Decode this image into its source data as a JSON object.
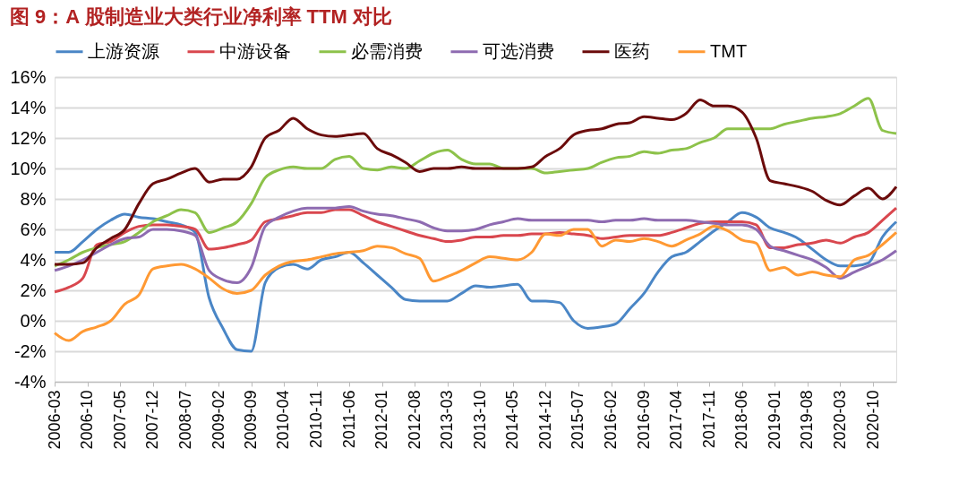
{
  "chart_data": {
    "type": "line",
    "title": "图 9：A 股制造业大类行业净利率 TTM 对比",
    "x": [
      "2006-03",
      "2006-06",
      "2006-09",
      "2006-12",
      "2007-03",
      "2007-06",
      "2007-09",
      "2007-12",
      "2008-03",
      "2008-06",
      "2008-09",
      "2008-12",
      "2009-03",
      "2009-06",
      "2009-09",
      "2009-12",
      "2010-03",
      "2010-06",
      "2010-09",
      "2010-12",
      "2011-03",
      "2011-06",
      "2011-09",
      "2011-12",
      "2012-03",
      "2012-06",
      "2012-09",
      "2012-12",
      "2013-03",
      "2013-06",
      "2013-09",
      "2013-12",
      "2014-03",
      "2014-06",
      "2014-09",
      "2014-12",
      "2015-03",
      "2015-06",
      "2015-09",
      "2015-12",
      "2016-03",
      "2016-06",
      "2016-09",
      "2016-12",
      "2017-03",
      "2017-06",
      "2017-09",
      "2017-12",
      "2018-03",
      "2018-06",
      "2018-09",
      "2018-12",
      "2019-03",
      "2019-06",
      "2019-09",
      "2019-12",
      "2020-03",
      "2020-06",
      "2020-09",
      "2020-12",
      "2021-03"
    ],
    "series": [
      {
        "name": "上游资源",
        "color": "#4a86c6",
        "values": [
          4.5,
          4.5,
          5.2,
          6.0,
          6.6,
          7.0,
          6.8,
          6.7,
          6.5,
          6.3,
          5.8,
          1.5,
          -0.5,
          -1.9,
          -2.0,
          2.5,
          3.5,
          3.7,
          3.4,
          4.0,
          4.2,
          4.5,
          3.8,
          3.0,
          2.2,
          1.4,
          1.3,
          1.3,
          1.3,
          1.8,
          2.3,
          2.2,
          2.3,
          2.4,
          1.3,
          1.3,
          1.2,
          0.0,
          -0.5,
          -0.4,
          -0.2,
          0.8,
          1.8,
          3.2,
          4.2,
          4.5,
          5.2,
          5.9,
          6.5,
          7.1,
          6.8,
          6.1,
          5.8,
          5.4,
          4.7,
          4.0,
          3.6,
          3.6,
          3.8,
          5.5,
          6.5
        ]
      },
      {
        "name": "中游设备",
        "color": "#d9474e",
        "values": [
          1.9,
          2.2,
          2.8,
          5.0,
          5.2,
          5.8,
          6.2,
          6.3,
          6.3,
          6.2,
          6.0,
          4.7,
          4.8,
          5.0,
          5.3,
          6.5,
          6.7,
          6.9,
          7.1,
          7.1,
          7.3,
          7.3,
          6.9,
          6.5,
          6.2,
          5.9,
          5.6,
          5.4,
          5.2,
          5.3,
          5.5,
          5.5,
          5.6,
          5.6,
          5.7,
          5.7,
          5.8,
          5.7,
          5.6,
          5.4,
          5.5,
          5.6,
          5.6,
          5.6,
          5.8,
          6.1,
          6.4,
          6.5,
          6.5,
          6.5,
          6.3,
          4.8,
          4.8,
          5.0,
          5.1,
          5.3,
          5.1,
          5.5,
          5.8,
          6.6,
          7.4
        ]
      },
      {
        "name": "必需消费",
        "color": "#8dc24a",
        "values": [
          3.6,
          4.0,
          4.5,
          4.8,
          5.0,
          5.2,
          5.8,
          6.5,
          6.9,
          7.3,
          7.1,
          5.8,
          6.1,
          6.5,
          7.7,
          9.4,
          9.9,
          10.1,
          10.0,
          10.0,
          10.6,
          10.8,
          10.0,
          9.9,
          10.1,
          10.0,
          10.5,
          11.0,
          11.2,
          10.6,
          10.3,
          10.3,
          10.0,
          10.0,
          10.0,
          9.7,
          9.8,
          9.9,
          10.0,
          10.4,
          10.7,
          10.8,
          11.1,
          11.0,
          11.2,
          11.3,
          11.7,
          12.0,
          12.6,
          12.6,
          12.6,
          12.6,
          12.9,
          13.1,
          13.3,
          13.4,
          13.6,
          14.1,
          14.6,
          12.5,
          12.3
        ]
      },
      {
        "name": "可选消费",
        "color": "#8e6bb1",
        "values": [
          3.3,
          3.6,
          4.0,
          4.5,
          5.0,
          5.4,
          5.5,
          6.0,
          6.0,
          5.9,
          5.6,
          3.3,
          2.7,
          2.5,
          3.5,
          6.2,
          6.8,
          7.2,
          7.4,
          7.4,
          7.4,
          7.5,
          7.2,
          7.0,
          6.9,
          6.7,
          6.5,
          6.1,
          5.9,
          5.9,
          6.0,
          6.3,
          6.5,
          6.7,
          6.6,
          6.6,
          6.6,
          6.6,
          6.6,
          6.5,
          6.6,
          6.6,
          6.7,
          6.6,
          6.6,
          6.6,
          6.5,
          6.4,
          6.3,
          6.3,
          6.0,
          4.9,
          4.6,
          4.3,
          4.0,
          3.5,
          2.8,
          3.2,
          3.6,
          4.0,
          4.6
        ]
      },
      {
        "name": "医药",
        "color": "#6b0b0b",
        "values": [
          3.7,
          3.7,
          3.8,
          4.8,
          5.4,
          6.0,
          7.7,
          9.0,
          9.3,
          9.7,
          10.0,
          9.1,
          9.3,
          9.3,
          10.1,
          12.0,
          12.5,
          13.3,
          12.6,
          12.2,
          12.1,
          12.2,
          12.3,
          11.3,
          10.9,
          10.4,
          9.8,
          10.0,
          10.0,
          10.1,
          10.0,
          10.0,
          10.0,
          10.0,
          10.1,
          10.8,
          11.3,
          12.2,
          12.5,
          12.6,
          12.9,
          13.0,
          13.4,
          13.3,
          13.2,
          13.6,
          14.5,
          14.1,
          14.1,
          13.7,
          12.0,
          9.2,
          9.0,
          8.8,
          8.5,
          7.9,
          7.6,
          8.2,
          8.7,
          8.0,
          8.8
        ]
      },
      {
        "name": "TMT",
        "color": "#ff9933",
        "values": [
          -0.8,
          -1.3,
          -0.7,
          -0.4,
          0.0,
          1.1,
          1.7,
          3.4,
          3.6,
          3.7,
          3.4,
          2.8,
          2.1,
          1.8,
          2.0,
          3.0,
          3.6,
          3.9,
          4.0,
          4.2,
          4.4,
          4.5,
          4.6,
          4.9,
          4.8,
          4.4,
          4.1,
          2.6,
          2.9,
          3.3,
          3.8,
          4.2,
          4.1,
          4.0,
          4.5,
          5.7,
          5.6,
          6.0,
          6.0,
          4.9,
          5.3,
          5.2,
          5.4,
          5.2,
          4.9,
          5.3,
          5.7,
          6.2,
          5.9,
          5.3,
          5.1,
          3.3,
          3.5,
          3.0,
          3.2,
          3.0,
          2.9,
          4.0,
          4.3,
          5.0,
          5.8
        ]
      }
    ],
    "xlim": [
      "2006-03",
      "2021-03"
    ],
    "xticks": [
      "2006-03",
      "2006-10",
      "2007-05",
      "2007-12",
      "2008-07",
      "2009-02",
      "2009-09",
      "2010-04",
      "2010-11",
      "2011-06",
      "2012-01",
      "2012-08",
      "2013-03",
      "2013-10",
      "2014-05",
      "2014-12",
      "2015-07",
      "2016-02",
      "2016-09",
      "2017-04",
      "2017-11",
      "2018-06",
      "2019-01",
      "2019-08",
      "2020-03",
      "2020-10"
    ],
    "ylim": [
      -4,
      16
    ],
    "yticks": [
      {
        "value": -4,
        "label": "-4%"
      },
      {
        "value": -2,
        "label": "-2%"
      },
      {
        "value": 0,
        "label": "0%"
      },
      {
        "value": 2,
        "label": "2%"
      },
      {
        "value": 4,
        "label": "4%"
      },
      {
        "value": 6,
        "label": "6%"
      },
      {
        "value": 8,
        "label": "8%"
      },
      {
        "value": 10,
        "label": "10%"
      },
      {
        "value": 12,
        "label": "12%"
      },
      {
        "value": 14,
        "label": "14%"
      },
      {
        "value": 16,
        "label": "16%"
      }
    ],
    "grid": "y",
    "legend": "top",
    "marker": "none",
    "line_style": "solid"
  }
}
